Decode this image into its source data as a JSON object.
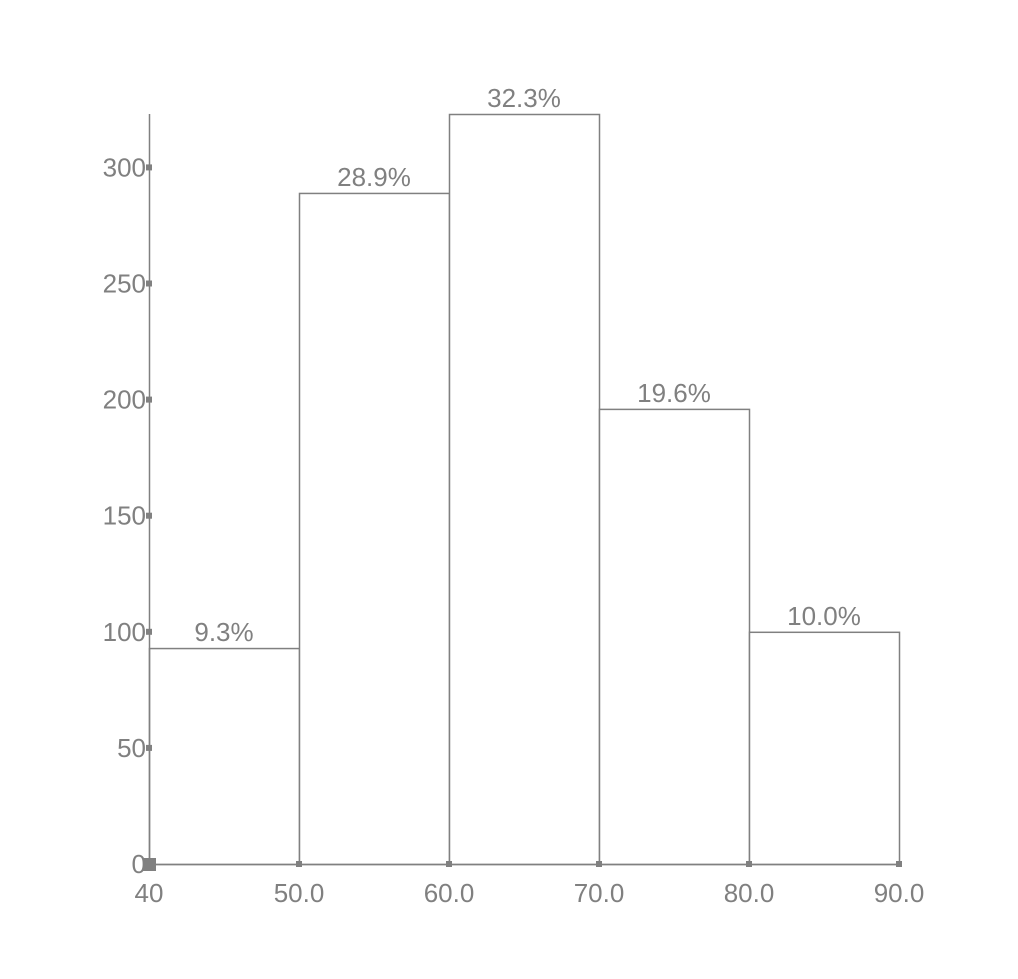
{
  "chart_data": {
    "type": "bar",
    "title": "",
    "xlabel": "",
    "ylabel": "",
    "bin_edges": [
      40,
      50,
      60,
      70,
      80,
      90
    ],
    "x_tick_labels": [
      "40",
      "50.0",
      "60.0",
      "70.0",
      "80.0",
      "90.0"
    ],
    "values": [
      93,
      289,
      323,
      196,
      100
    ],
    "data_labels": [
      "9.3%",
      "28.9%",
      "32.3%",
      "19.6%",
      "10.0%"
    ],
    "y_ticks": [
      0,
      50,
      100,
      150,
      200,
      250,
      300
    ],
    "y_tick_labels": [
      "0",
      "50",
      "100",
      "150",
      "200",
      "250",
      "300"
    ],
    "xlim": [
      40,
      90
    ],
    "ylim": [
      0,
      323
    ],
    "grid": false,
    "colors": {
      "bar_fill": "#ffffff",
      "bar_stroke": "#808080",
      "axis": "#808080",
      "text": "#808080"
    }
  }
}
